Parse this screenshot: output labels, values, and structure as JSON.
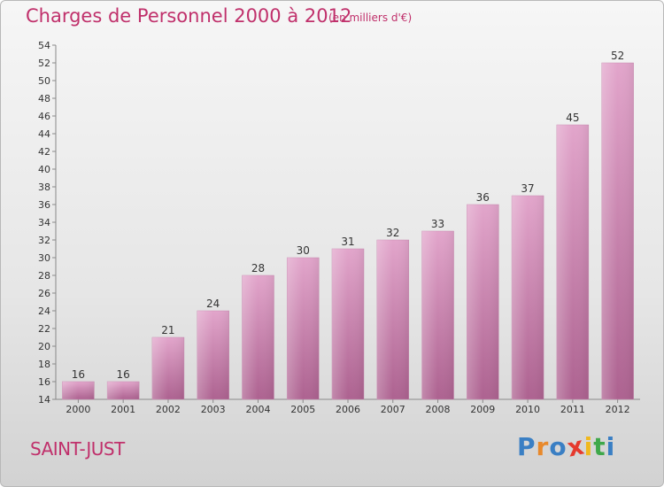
{
  "title": "Charges de Personnel 2000 à 2012",
  "subtitle": "(en milliers d'€)",
  "location": "SAINT-JUST",
  "logo": {
    "letters": [
      "P",
      "r",
      "o",
      "x",
      "i",
      "t",
      "i"
    ],
    "colors": [
      "#3a7fc4",
      "#e8892b",
      "#3a7fc4",
      "#e53a2e",
      "#f0b81e",
      "#3fa84a",
      "#3a7fc4"
    ]
  },
  "colors": {
    "accent": "#c0306b",
    "bar_top": "#e2a5cb",
    "bar_bottom": "#ad6290",
    "axis": "#888888"
  },
  "chart_data": {
    "type": "bar",
    "title": "Charges de Personnel 2000 à 2012",
    "subtitle": "(en milliers d'€)",
    "categories": [
      "2000",
      "2001",
      "2002",
      "2003",
      "2004",
      "2005",
      "2006",
      "2007",
      "2008",
      "2009",
      "2010",
      "2011",
      "2012"
    ],
    "values": [
      16,
      16,
      21,
      24,
      28,
      30,
      31,
      32,
      33,
      36,
      37,
      45,
      52
    ],
    "ylim": [
      14,
      54
    ],
    "ytick_step": 2,
    "xlabel": "",
    "ylabel": "",
    "grid": false
  }
}
